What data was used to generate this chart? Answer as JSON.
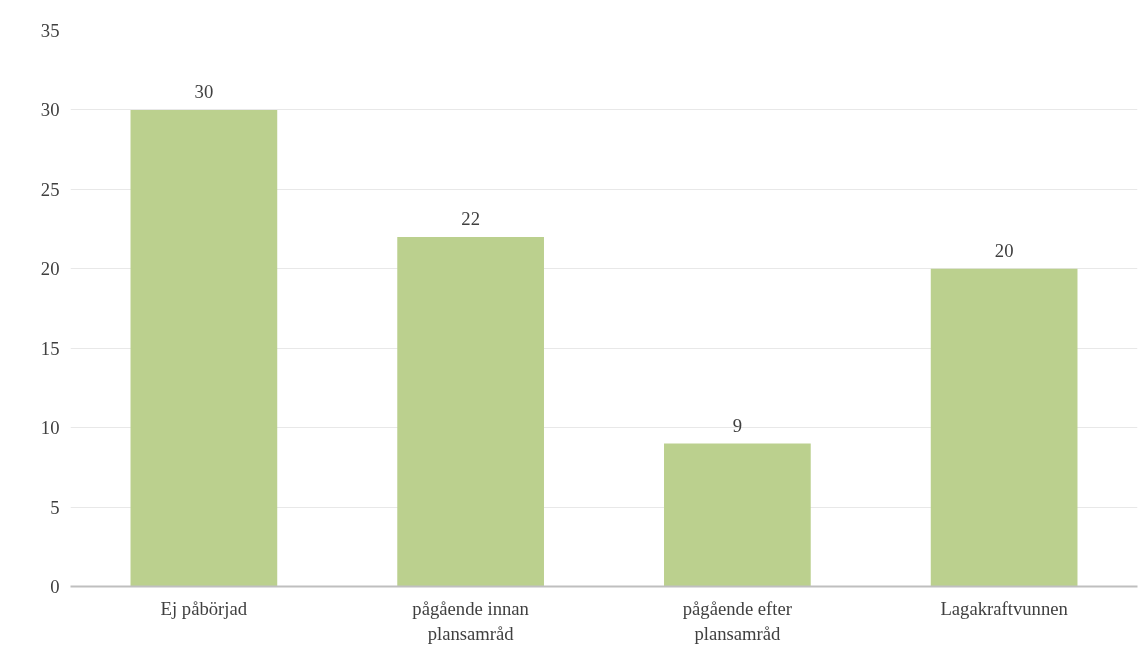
{
  "chart_data": {
    "type": "bar",
    "categories": [
      "Ej påbörjad",
      "pågående innan\nplansamråd",
      "pågående efter\nplansamråd",
      "Lagakraftvunnen"
    ],
    "values": [
      30,
      22,
      9,
      20
    ],
    "color": "#bbd08e",
    "ylim": [
      0,
      35
    ],
    "yticks": [
      0,
      5,
      10,
      15,
      20,
      25,
      30,
      35
    ],
    "grid": "y",
    "data_labels": true
  }
}
